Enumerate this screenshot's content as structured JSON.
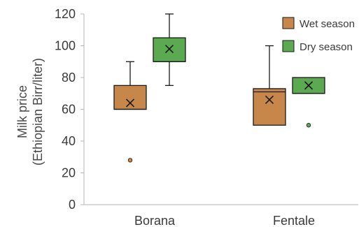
{
  "chart_data": {
    "type": "box",
    "ylabel_lines": [
      "Milk price",
      "(Ethiopian Birr/liter)"
    ],
    "ylim": [
      0,
      120
    ],
    "yticks": [
      0,
      20,
      40,
      60,
      80,
      100,
      120
    ],
    "grid": false,
    "legend_position": "top-right",
    "categories": [
      "Borana",
      "Fentale"
    ],
    "series": [
      {
        "name": "Wet season",
        "color": "#C8874A",
        "boxes": [
          {
            "category": "Borana",
            "min": 60,
            "q1": 60,
            "median": 60,
            "q3": 75,
            "max": 90,
            "mean": 64,
            "outliers": [
              28
            ]
          },
          {
            "category": "Fentale",
            "min": 50,
            "q1": 50,
            "median": 71,
            "q3": 73,
            "max": 100,
            "mean": 66,
            "outliers": []
          }
        ]
      },
      {
        "name": "Dry season",
        "color": "#5BAA52",
        "boxes": [
          {
            "category": "Borana",
            "min": 75,
            "q1": 90,
            "median": 90,
            "q3": 105,
            "max": 120,
            "mean": 98,
            "outliers": []
          },
          {
            "category": "Fentale",
            "min": 70,
            "q1": 70,
            "median": 70,
            "q3": 80,
            "max": 80,
            "mean": 75,
            "outliers": [
              50
            ]
          }
        ]
      }
    ]
  }
}
